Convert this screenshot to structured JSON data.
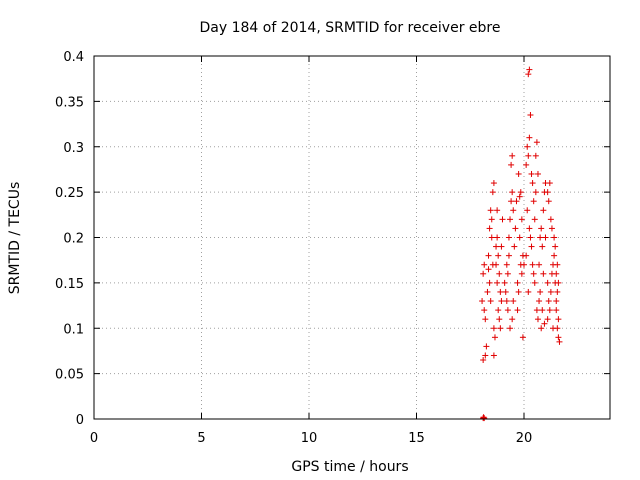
{
  "chart_data": {
    "type": "scatter",
    "title": "Day 184 of 2014, SRMTID for receiver ebre",
    "xlabel": "GPS time / hours",
    "ylabel": "SRMTID / TECUs",
    "xlim": [
      0,
      24
    ],
    "ylim": [
      0,
      0.4
    ],
    "xticks": [
      0,
      5,
      10,
      15,
      20
    ],
    "xtick_labels": [
      "0",
      "5",
      "10",
      "15",
      "20"
    ],
    "yticks": [
      0,
      0.05,
      0.1,
      0.15,
      0.2,
      0.25,
      0.3,
      0.35,
      0.4
    ],
    "ytick_labels": [
      "0",
      "0.05",
      "0.1",
      "0.15",
      "0.2",
      "0.25",
      "0.3",
      "0.35",
      "0.4"
    ],
    "grid": true,
    "marker": "+",
    "color": "#e00000",
    "series": [
      {
        "name": "SRMTID",
        "points": [
          [
            18.1,
            0.001
          ],
          [
            18.12,
            0.002
          ],
          [
            18.15,
            0.001
          ],
          [
            18.05,
            0.13
          ],
          [
            18.1,
            0.16
          ],
          [
            18.15,
            0.17
          ],
          [
            18.2,
            0.11
          ],
          [
            18.25,
            0.08
          ],
          [
            18.1,
            0.065
          ],
          [
            18.2,
            0.07
          ],
          [
            18.3,
            0.14
          ],
          [
            18.15,
            0.12
          ],
          [
            18.35,
            0.18
          ],
          [
            18.4,
            0.21
          ],
          [
            18.45,
            0.23
          ],
          [
            18.5,
            0.2
          ],
          [
            18.4,
            0.15
          ],
          [
            18.45,
            0.13
          ],
          [
            18.55,
            0.17
          ],
          [
            18.6,
            0.1
          ],
          [
            18.6,
            0.07
          ],
          [
            18.65,
            0.09
          ],
          [
            18.55,
            0.25
          ],
          [
            18.6,
            0.26
          ],
          [
            18.5,
            0.22
          ],
          [
            18.35,
            0.165
          ],
          [
            18.7,
            0.19
          ],
          [
            18.75,
            0.2
          ],
          [
            18.8,
            0.18
          ],
          [
            18.85,
            0.16
          ],
          [
            18.9,
            0.14
          ],
          [
            18.95,
            0.13
          ],
          [
            18.8,
            0.12
          ],
          [
            18.75,
            0.15
          ],
          [
            18.7,
            0.17
          ],
          [
            18.9,
            0.1
          ],
          [
            18.85,
            0.11
          ],
          [
            18.95,
            0.19
          ],
          [
            19.0,
            0.22
          ],
          [
            18.75,
            0.23
          ],
          [
            19.1,
            0.15
          ],
          [
            19.15,
            0.14
          ],
          [
            19.2,
            0.13
          ],
          [
            19.25,
            0.16
          ],
          [
            19.3,
            0.2
          ],
          [
            19.35,
            0.22
          ],
          [
            19.4,
            0.24
          ],
          [
            19.45,
            0.25
          ],
          [
            19.5,
            0.23
          ],
          [
            19.4,
            0.28
          ],
          [
            19.45,
            0.29
          ],
          [
            19.3,
            0.18
          ],
          [
            19.25,
            0.12
          ],
          [
            19.35,
            0.1
          ],
          [
            19.45,
            0.11
          ],
          [
            19.5,
            0.13
          ],
          [
            19.2,
            0.17
          ],
          [
            19.55,
            0.19
          ],
          [
            19.6,
            0.21
          ],
          [
            19.65,
            0.24
          ],
          [
            19.7,
            0.15
          ],
          [
            19.75,
            0.14
          ],
          [
            19.8,
            0.2
          ],
          [
            19.85,
            0.17
          ],
          [
            19.9,
            0.16
          ],
          [
            19.95,
            0.09
          ],
          [
            19.7,
            0.12
          ],
          [
            19.8,
            0.245
          ],
          [
            19.9,
            0.22
          ],
          [
            19.95,
            0.18
          ],
          [
            20.0,
            0.17
          ],
          [
            19.75,
            0.27
          ],
          [
            19.85,
            0.25
          ],
          [
            20.1,
            0.28
          ],
          [
            20.15,
            0.3
          ],
          [
            20.2,
            0.29
          ],
          [
            20.25,
            0.31
          ],
          [
            20.2,
            0.38
          ],
          [
            20.25,
            0.385
          ],
          [
            20.3,
            0.335
          ],
          [
            20.35,
            0.27
          ],
          [
            20.4,
            0.26
          ],
          [
            20.45,
            0.24
          ],
          [
            20.5,
            0.22
          ],
          [
            20.3,
            0.2
          ],
          [
            20.35,
            0.19
          ],
          [
            20.4,
            0.17
          ],
          [
            20.45,
            0.16
          ],
          [
            20.5,
            0.15
          ],
          [
            20.2,
            0.14
          ],
          [
            20.25,
            0.21
          ],
          [
            20.15,
            0.23
          ],
          [
            20.1,
            0.18
          ],
          [
            20.55,
            0.29
          ],
          [
            20.6,
            0.305
          ],
          [
            20.55,
            0.25
          ],
          [
            20.6,
            0.12
          ],
          [
            20.65,
            0.11
          ],
          [
            20.7,
            0.13
          ],
          [
            20.75,
            0.14
          ],
          [
            20.8,
            0.1
          ],
          [
            20.85,
            0.12
          ],
          [
            20.7,
            0.17
          ],
          [
            20.75,
            0.2
          ],
          [
            20.8,
            0.21
          ],
          [
            20.85,
            0.19
          ],
          [
            20.9,
            0.23
          ],
          [
            20.95,
            0.25
          ],
          [
            21.0,
            0.26
          ],
          [
            20.65,
            0.27
          ],
          [
            20.9,
            0.16
          ],
          [
            21.0,
            0.2
          ],
          [
            20.95,
            0.105
          ],
          [
            21.1,
            0.25
          ],
          [
            21.15,
            0.24
          ],
          [
            21.2,
            0.26
          ],
          [
            21.25,
            0.22
          ],
          [
            21.3,
            0.21
          ],
          [
            21.1,
            0.15
          ],
          [
            21.15,
            0.13
          ],
          [
            21.2,
            0.12
          ],
          [
            21.25,
            0.14
          ],
          [
            21.3,
            0.16
          ],
          [
            21.35,
            0.17
          ],
          [
            21.4,
            0.18
          ],
          [
            21.45,
            0.15
          ],
          [
            21.5,
            0.13
          ],
          [
            21.1,
            0.11
          ],
          [
            21.35,
            0.1
          ],
          [
            21.5,
            0.12
          ],
          [
            21.55,
            0.1
          ],
          [
            21.6,
            0.09
          ],
          [
            21.65,
            0.085
          ],
          [
            21.6,
            0.11
          ],
          [
            21.55,
            0.14
          ],
          [
            21.5,
            0.16
          ],
          [
            21.45,
            0.19
          ],
          [
            21.4,
            0.2
          ],
          [
            21.6,
            0.15
          ],
          [
            21.55,
            0.17
          ]
        ]
      }
    ]
  }
}
